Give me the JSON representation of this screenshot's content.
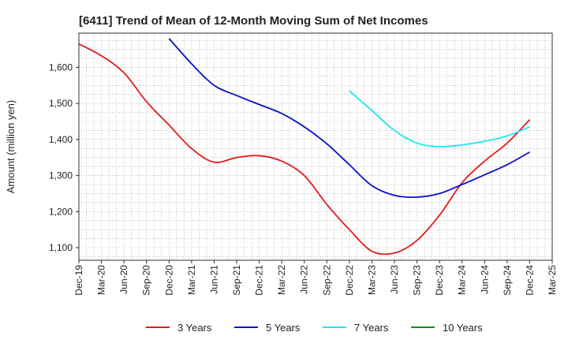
{
  "chart_data": {
    "type": "line",
    "title": "[6411]  Trend of Mean of 12-Month Moving Sum of Net Incomes",
    "ylabel": "Amount (million yen)",
    "xlabel": "",
    "x_ticks": [
      "Dec-19",
      "Mar-20",
      "Jun-20",
      "Sep-20",
      "Dec-20",
      "Mar-21",
      "Jun-21",
      "Sep-21",
      "Dec-21",
      "Mar-22",
      "Jun-22",
      "Sep-22",
      "Dec-22",
      "Mar-23",
      "Jun-23",
      "Sep-23",
      "Dec-23",
      "Mar-24",
      "Jun-24",
      "Sep-24",
      "Dec-24",
      "Mar-25"
    ],
    "y_ticks": [
      1100,
      1200,
      1300,
      1400,
      1500,
      1600
    ],
    "y_tick_labels": [
      "1,100",
      "1,200",
      "1,300",
      "1,400",
      "1,500",
      "1,600"
    ],
    "ylim": [
      1065,
      1695
    ],
    "grid": true,
    "legend_position": "bottom",
    "series": [
      {
        "name": "3 Years",
        "color": "#e31a1c",
        "x": [
          0,
          1,
          2,
          3,
          4,
          5,
          6,
          7,
          8,
          9,
          10,
          11,
          12,
          13,
          14,
          15,
          16,
          17,
          18,
          19,
          20
        ],
        "values": [
          1665,
          1632,
          1585,
          1505,
          1440,
          1375,
          1337,
          1350,
          1355,
          1340,
          1300,
          1220,
          1150,
          1090,
          1085,
          1120,
          1190,
          1280,
          1340,
          1390,
          1455
        ]
      },
      {
        "name": "5 Years",
        "color": "#0a10c8",
        "x": [
          4,
          5,
          6,
          7,
          8,
          9,
          10,
          11,
          12,
          13,
          14,
          15,
          16,
          17,
          18,
          19,
          20
        ],
        "values": [
          1680,
          1610,
          1550,
          1522,
          1497,
          1472,
          1435,
          1388,
          1330,
          1272,
          1245,
          1240,
          1250,
          1275,
          1302,
          1330,
          1365
        ]
      },
      {
        "name": "7 Years",
        "color": "#1ae8ee",
        "x": [
          12,
          13,
          14,
          15,
          16,
          17,
          18,
          19,
          20
        ],
        "values": [
          1535,
          1480,
          1425,
          1390,
          1380,
          1385,
          1395,
          1410,
          1435
        ]
      },
      {
        "name": "10 Years",
        "color": "#1a8a1a",
        "x": [],
        "values": []
      }
    ]
  }
}
